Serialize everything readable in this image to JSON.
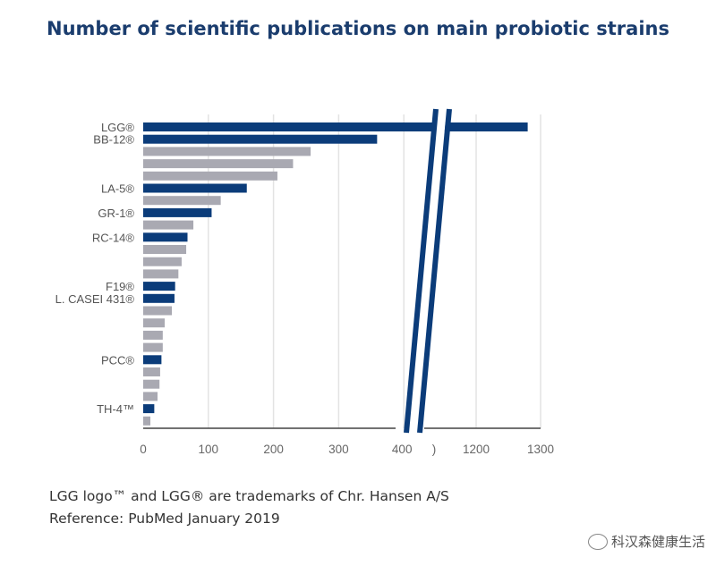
{
  "chart_data": {
    "type": "bar",
    "orientation": "horizontal",
    "title": "Number of scientific publications on main probiotic strains",
    "xlabel": "",
    "ylabel": "",
    "axis_break": [
      400,
      1100
    ],
    "xlim": [
      0,
      1300
    ],
    "x_ticks": [
      "0",
      "100",
      "200",
      "300",
      "400",
      ")",
      "1200",
      "1300"
    ],
    "grid": true,
    "bars": [
      {
        "label": "LGG®",
        "value": 1280,
        "highlight": true
      },
      {
        "label": "BB-12®",
        "value": 359,
        "highlight": true
      },
      {
        "label": "",
        "value": 257,
        "highlight": false
      },
      {
        "label": "",
        "value": 230,
        "highlight": false
      },
      {
        "label": "",
        "value": 206,
        "highlight": false
      },
      {
        "label": "LA-5®",
        "value": 159,
        "highlight": true
      },
      {
        "label": "",
        "value": 119,
        "highlight": false
      },
      {
        "label": "GR-1®",
        "value": 105,
        "highlight": true
      },
      {
        "label": "",
        "value": 77,
        "highlight": false
      },
      {
        "label": "RC-14®",
        "value": 68,
        "highlight": true
      },
      {
        "label": "",
        "value": 66,
        "highlight": false
      },
      {
        "label": "",
        "value": 59,
        "highlight": false
      },
      {
        "label": "",
        "value": 54,
        "highlight": false
      },
      {
        "label": "F19®",
        "value": 49,
        "highlight": true
      },
      {
        "label": "L. CASEI 431®",
        "value": 48,
        "highlight": true
      },
      {
        "label": "",
        "value": 44,
        "highlight": false
      },
      {
        "label": "",
        "value": 33,
        "highlight": false
      },
      {
        "label": "",
        "value": 30,
        "highlight": false
      },
      {
        "label": "",
        "value": 30,
        "highlight": false
      },
      {
        "label": "PCC®",
        "value": 28,
        "highlight": true
      },
      {
        "label": "",
        "value": 26,
        "highlight": false
      },
      {
        "label": "",
        "value": 25,
        "highlight": false
      },
      {
        "label": "",
        "value": 22,
        "highlight": false
      },
      {
        "label": "TH-4™",
        "value": 17,
        "highlight": true
      },
      {
        "label": "",
        "value": 11,
        "highlight": false
      }
    ],
    "colors": {
      "highlight": "#0b3c7a",
      "other": "#a9a9b2"
    }
  },
  "footer": {
    "trademark": "LGG logo™ and LGG® are trademarks of Chr. Hansen A/S",
    "reference": "Reference: PubMed January 2019"
  },
  "watermark": "科汉森健康生活"
}
